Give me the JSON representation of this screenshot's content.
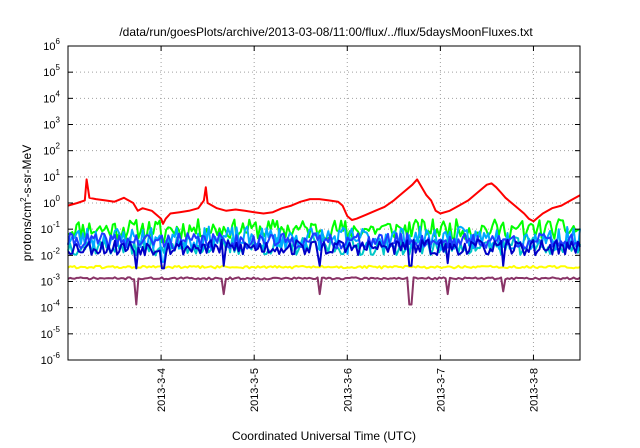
{
  "chart_data": {
    "type": "line",
    "title": "/data/run/goesPlots/archive/2013-03-08/11:00/flux/../flux/5daysMoonFluxes.txt",
    "xlabel": "Coordinated Universal Time (UTC)",
    "ylabel_base": "protons/cm",
    "ylabel_sup": "2",
    "ylabel_tail": "-s-sr-MeV",
    "y_scale": "log",
    "y_range_exp": [
      -6,
      6
    ],
    "x_range_days": [
      3.0,
      8.5
    ],
    "grid": true,
    "legend": "none",
    "x_ticks": [
      {
        "label": "2013-3-4",
        "day": 4
      },
      {
        "label": "2013-3-5",
        "day": 5
      },
      {
        "label": "2013-3-6",
        "day": 6
      },
      {
        "label": "2013-3-7",
        "day": 7
      },
      {
        "label": "2013-3-8",
        "day": 8
      }
    ],
    "y_ticks": [
      {
        "base": "10",
        "exp": "6",
        "value": 6
      },
      {
        "base": "10",
        "exp": "5",
        "value": 5
      },
      {
        "base": "10",
        "exp": "4",
        "value": 4
      },
      {
        "base": "10",
        "exp": "3",
        "value": 3
      },
      {
        "base": "10",
        "exp": "2",
        "value": 2
      },
      {
        "base": "10",
        "exp": "1",
        "value": 1
      },
      {
        "base": "10",
        "exp": "0",
        "value": 0
      },
      {
        "base": "10",
        "exp": "-1",
        "value": -1
      },
      {
        "base": "10",
        "exp": "-2",
        "value": -2
      },
      {
        "base": "10",
        "exp": "-3",
        "value": -3
      },
      {
        "base": "10",
        "exp": "-4",
        "value": -4
      },
      {
        "base": "10",
        "exp": "-5",
        "value": -5
      },
      {
        "base": "10",
        "exp": "-6",
        "value": -6
      }
    ],
    "series_note": "values are log10 of flux at day-of-month x",
    "series": [
      {
        "color": "#ff0000",
        "points": [
          [
            3.0,
            -0.1
          ],
          [
            3.1,
            0.0
          ],
          [
            3.18,
            0.1
          ],
          [
            3.2,
            0.9
          ],
          [
            3.23,
            0.2
          ],
          [
            3.3,
            0.15
          ],
          [
            3.4,
            0.1
          ],
          [
            3.5,
            0.05
          ],
          [
            3.6,
            0.2
          ],
          [
            3.7,
            0.0
          ],
          [
            3.75,
            -0.3
          ],
          [
            3.8,
            -0.2
          ],
          [
            3.9,
            -0.3
          ],
          [
            4.0,
            -0.6
          ],
          [
            4.02,
            -0.8
          ],
          [
            4.05,
            -0.6
          ],
          [
            4.1,
            -0.4
          ],
          [
            4.2,
            -0.35
          ],
          [
            4.3,
            -0.3
          ],
          [
            4.4,
            -0.2
          ],
          [
            4.46,
            0.1
          ],
          [
            4.48,
            0.6
          ],
          [
            4.5,
            0.0
          ],
          [
            4.6,
            -0.2
          ],
          [
            4.7,
            -0.3
          ],
          [
            4.8,
            -0.25
          ],
          [
            4.9,
            -0.3
          ],
          [
            5.0,
            -0.35
          ],
          [
            5.1,
            -0.4
          ],
          [
            5.2,
            -0.35
          ],
          [
            5.3,
            -0.2
          ],
          [
            5.4,
            -0.1
          ],
          [
            5.5,
            0.05
          ],
          [
            5.6,
            0.15
          ],
          [
            5.7,
            0.15
          ],
          [
            5.8,
            0.1
          ],
          [
            5.9,
            0.05
          ],
          [
            5.95,
            -0.1
          ],
          [
            6.0,
            -0.5
          ],
          [
            6.05,
            -0.65
          ],
          [
            6.1,
            -0.6
          ],
          [
            6.2,
            -0.45
          ],
          [
            6.3,
            -0.3
          ],
          [
            6.4,
            -0.15
          ],
          [
            6.5,
            0.1
          ],
          [
            6.6,
            0.4
          ],
          [
            6.7,
            0.7
          ],
          [
            6.75,
            0.9
          ],
          [
            6.8,
            0.6
          ],
          [
            6.85,
            0.3
          ],
          [
            6.9,
            0.1
          ],
          [
            6.95,
            -0.3
          ],
          [
            7.0,
            -0.4
          ],
          [
            7.1,
            -0.3
          ],
          [
            7.2,
            -0.1
          ],
          [
            7.3,
            0.1
          ],
          [
            7.4,
            0.4
          ],
          [
            7.5,
            0.7
          ],
          [
            7.55,
            0.75
          ],
          [
            7.6,
            0.6
          ],
          [
            7.65,
            0.4
          ],
          [
            7.7,
            0.2
          ],
          [
            7.8,
            -0.1
          ],
          [
            7.9,
            -0.4
          ],
          [
            7.95,
            -0.6
          ],
          [
            8.0,
            -0.7
          ],
          [
            8.05,
            -0.55
          ],
          [
            8.1,
            -0.4
          ],
          [
            8.2,
            -0.2
          ],
          [
            8.3,
            -0.1
          ],
          [
            8.4,
            0.1
          ],
          [
            8.5,
            0.3
          ]
        ]
      },
      {
        "color": "#00ff00",
        "center": -1.0,
        "amp": 0.38,
        "seed": 11,
        "dips": [
          [
            4.02,
            -0.5
          ],
          [
            6.0,
            -0.4
          ],
          [
            7.9,
            -0.4
          ]
        ]
      },
      {
        "color": "#00aaff",
        "center": -1.35,
        "amp": 0.45,
        "seed": 23,
        "dips": [
          [
            4.02,
            -0.9
          ],
          [
            6.0,
            -0.6
          ]
        ]
      },
      {
        "color": "#00c8c8",
        "center": -1.65,
        "amp": 0.35,
        "seed": 37,
        "dips": []
      },
      {
        "color": "#1e3cff",
        "center": -1.45,
        "amp": 0.3,
        "seed": 41,
        "dips": []
      },
      {
        "color": "#0000c8",
        "center": -1.7,
        "amp": 0.3,
        "seed": 53,
        "dips": [
          [
            3.73,
            -0.8
          ],
          [
            4.02,
            -0.8
          ],
          [
            4.68,
            -0.7
          ],
          [
            5.71,
            -0.7
          ],
          [
            6.68,
            -0.7
          ],
          [
            7.08,
            -0.6
          ],
          [
            7.67,
            -0.7
          ]
        ]
      },
      {
        "color": "#ffff00",
        "center": -2.45,
        "amp": 0.05,
        "seed": 61,
        "dips": []
      },
      {
        "color": "#883366",
        "center": -2.88,
        "amp": 0.04,
        "seed": 71,
        "dips": [
          [
            3.73,
            -1.0
          ],
          [
            4.68,
            -0.6
          ],
          [
            5.71,
            -0.6
          ],
          [
            6.68,
            -1.0
          ],
          [
            7.08,
            -0.6
          ],
          [
            7.67,
            -0.5
          ]
        ]
      }
    ]
  }
}
